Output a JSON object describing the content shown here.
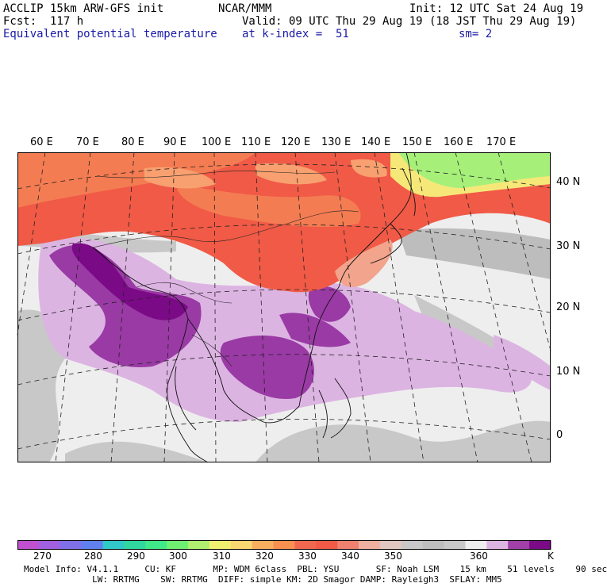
{
  "header": {
    "line1_left": "ACCLIP 15km ARW-GFS init",
    "line1_mid": "NCAR/MMM",
    "line1_right": "Init: 12 UTC Sat 24 Aug 19",
    "line2_left": "Fcst:  117 h",
    "line2_right": "Valid: 09 UTC Thu 29 Aug 19 (18 JST Thu 29 Aug 19)",
    "line3_left": "Equivalent potential temperature",
    "line3_mid": "at k-index =  51",
    "line3_right": "sm= 2"
  },
  "map": {
    "lon_labels": [
      "60 E",
      "70 E",
      "80 E",
      "90 E",
      "100 E",
      "110 E",
      "120 E",
      "130 E",
      "140 E",
      "150 E",
      "160 E",
      "170 E"
    ],
    "lat_labels": [
      "40 N",
      "30 N",
      "20 N",
      "10 N",
      "0"
    ],
    "palette": {
      "purple_dark": "#7a0a85",
      "purple": "#9a3aa5",
      "lilac": "#dcb4e2",
      "pale": "#eeeeee",
      "grey": "#c8c8c8",
      "darkgrey": "#aaaaaa",
      "salmon": "#f2a48c",
      "red": "#f05a46",
      "orange": "#f47c52",
      "lightorange": "#f8a070",
      "yellow": "#f6e878",
      "green": "#a6f07a"
    }
  },
  "colorbar": {
    "ticks": [
      "270",
      "280",
      "290",
      "300",
      "310",
      "320",
      "330",
      "340",
      "350",
      "360"
    ],
    "unit": "K",
    "colors": [
      "#c050d0",
      "#a060e0",
      "#8070e8",
      "#6080f0",
      "#30c8c8",
      "#30d8a0",
      "#40e888",
      "#70f070",
      "#b0f070",
      "#f0f070",
      "#f8d870",
      "#f8b060",
      "#f89050",
      "#f06850",
      "#f05a46",
      "#f08070",
      "#f0b0a0",
      "#e0c8c0",
      "#c8c8c8",
      "#bebebe",
      "#c8c8c8",
      "#eeeeee",
      "#dcb4e2",
      "#a040a8",
      "#7a0a85"
    ]
  },
  "footer": {
    "line1": "Model Info: V4.1.1     CU: KF       MP: WDM 6class  PBL: YSU       SF: Noah LSM    15 km    51 levels    90 sec",
    "line2": "             LW: RRTMG    SW: RRTMG  DIFF: simple KM: 2D Smagor DAMP: Rayleigh3  SFLAY: MM5"
  }
}
